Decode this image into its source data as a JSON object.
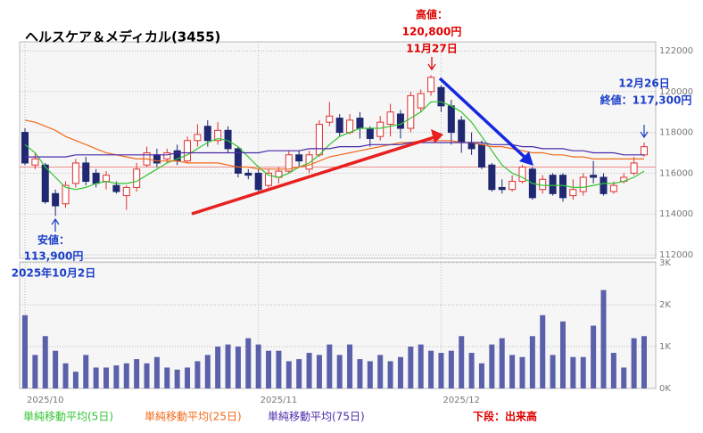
{
  "chart_data": {
    "type": "candlestick",
    "title": "ヘルスケア＆メディカル(3455)",
    "categories": [
      "2025/10",
      null,
      null,
      null,
      null,
      null,
      null,
      null,
      null,
      null,
      null,
      null,
      null,
      null,
      null,
      null,
      null,
      null,
      null,
      null,
      null,
      null,
      null,
      "2025/11",
      null,
      null,
      null,
      null,
      null,
      null,
      null,
      null,
      null,
      null,
      null,
      null,
      null,
      null,
      null,
      null,
      null,
      "2025/12",
      null,
      null,
      null,
      null,
      null,
      null,
      null,
      null,
      null,
      null,
      null,
      null,
      null,
      null,
      null,
      null,
      null,
      null,
      null,
      null
    ],
    "open": [
      118000,
      116400,
      116400,
      115000,
      114500,
      115500,
      116500,
      116000,
      115600,
      115400,
      114900,
      115300,
      116400,
      116900,
      116700,
      117100,
      116600,
      117600,
      118300,
      117600,
      118100,
      117200,
      116000,
      116000,
      115400,
      115800,
      116100,
      116900,
      116200,
      116900,
      118500,
      118700,
      118000,
      118700,
      118200,
      117800,
      118400,
      118900,
      118200,
      119200,
      120000,
      120200,
      119300,
      118600,
      117500,
      117400,
      116400,
      115300,
      115200,
      115600,
      116200,
      115200,
      115900,
      115900,
      114900,
      115100,
      115900,
      115800,
      115100,
      115600,
      116000,
      116900
    ],
    "high": [
      118200,
      117000,
      116500,
      115200,
      115600,
      116700,
      116800,
      116200,
      116100,
      115600,
      115400,
      116500,
      117300,
      117200,
      117200,
      117400,
      117800,
      118400,
      118600,
      118500,
      118300,
      117300,
      116200,
      116200,
      116200,
      116300,
      117100,
      117100,
      117100,
      118600,
      119500,
      118900,
      118900,
      119000,
      118300,
      118800,
      119400,
      119100,
      120000,
      120100,
      120800,
      120300,
      119600,
      118800,
      118000,
      117600,
      116500,
      115700,
      115900,
      116400,
      116300,
      115900,
      116000,
      116000,
      115700,
      116000,
      116600,
      116000,
      115600,
      116000,
      116800,
      117500
    ],
    "low": [
      116400,
      116200,
      114500,
      113900,
      114300,
      115300,
      115400,
      115300,
      115200,
      115000,
      114200,
      115100,
      116300,
      116300,
      116500,
      116400,
      116500,
      117300,
      117300,
      117400,
      117000,
      115800,
      115700,
      115000,
      115300,
      115500,
      116000,
      116300,
      116000,
      116800,
      118300,
      117800,
      117900,
      117700,
      117300,
      117600,
      117800,
      117700,
      118000,
      119000,
      119800,
      119000,
      117400,
      117000,
      116900,
      116200,
      115100,
      115000,
      115100,
      115500,
      114700,
      115000,
      114900,
      114600,
      114700,
      114900,
      115500,
      114900,
      115000,
      115500,
      115900,
      116800
    ],
    "close": [
      116500,
      116700,
      114600,
      114400,
      115400,
      116500,
      115600,
      115500,
      115900,
      115100,
      115300,
      116200,
      117000,
      116500,
      117000,
      116600,
      117600,
      117900,
      117600,
      118100,
      117200,
      116000,
      115900,
      115200,
      116000,
      116100,
      116900,
      116600,
      116900,
      118400,
      118800,
      118000,
      118600,
      118200,
      117700,
      118500,
      119000,
      118200,
      119800,
      119900,
      120700,
      119300,
      118000,
      117500,
      117200,
      116300,
      115200,
      115200,
      115600,
      116300,
      114800,
      115700,
      115000,
      114800,
      115200,
      115800,
      115800,
      115000,
      115400,
      115800,
      116500,
      117300
    ],
    "up_color": "#e03030",
    "down_color": "#1f2870",
    "hline": 116300,
    "hline_color": "#f09090",
    "ylim": [
      112000,
      122000
    ],
    "yticks": [
      112000,
      114000,
      116000,
      118000,
      120000,
      122000
    ],
    "grid": true,
    "series": [
      {
        "name": "単純移動平均(5日)",
        "color": "#33c433",
        "values": [
          117400,
          117000,
          116300,
          115800,
          115300,
          115200,
          115300,
          115500,
          115600,
          115500,
          115500,
          115600,
          115900,
          116200,
          116500,
          116700,
          116900,
          117200,
          117500,
          117700,
          117600,
          117300,
          116800,
          116300,
          115900,
          115800,
          116000,
          116300,
          116500,
          116900,
          117400,
          117800,
          118000,
          118200,
          118200,
          118200,
          118300,
          118400,
          118700,
          119000,
          119500,
          119500,
          119300,
          119000,
          118500,
          117800,
          117100,
          116400,
          116000,
          115800,
          115500,
          115400,
          115400,
          115400,
          115300,
          115300,
          115400,
          115500,
          115500,
          115600,
          115800,
          116100
        ]
      },
      {
        "name": "単純移動平均(25日)",
        "color": "#f26a1b",
        "values": [
          118600,
          118500,
          118300,
          118100,
          117800,
          117600,
          117400,
          117200,
          117000,
          116900,
          116800,
          116700,
          116700,
          116600,
          116600,
          116600,
          116500,
          116500,
          116500,
          116500,
          116400,
          116300,
          116300,
          116200,
          116200,
          116200,
          116200,
          116300,
          116400,
          116600,
          116800,
          116900,
          117000,
          117100,
          117200,
          117300,
          117400,
          117500,
          117500,
          117600,
          117600,
          117600,
          117600,
          117500,
          117500,
          117400,
          117300,
          117300,
          117200,
          117100,
          117000,
          117000,
          116900,
          116900,
          116800,
          116800,
          116700,
          116700,
          116700,
          116700,
          116700,
          116700
        ]
      },
      {
        "name": "単純移動平均(75日)",
        "color": "#4a2aa8",
        "values": [
          116800,
          116800,
          116800,
          116800,
          116800,
          116900,
          116900,
          116900,
          116900,
          116900,
          116900,
          116900,
          116900,
          116900,
          116900,
          117000,
          117000,
          117000,
          117000,
          117000,
          117000,
          117000,
          117000,
          117000,
          117100,
          117100,
          117100,
          117100,
          117200,
          117200,
          117200,
          117300,
          117300,
          117300,
          117400,
          117400,
          117400,
          117400,
          117500,
          117500,
          117500,
          117500,
          117500,
          117500,
          117500,
          117500,
          117400,
          117400,
          117400,
          117300,
          117300,
          117200,
          117200,
          117200,
          117100,
          117100,
          117000,
          117000,
          117000,
          116900,
          116900,
          116900
        ]
      }
    ],
    "volume": {
      "name": "下段：出来高",
      "name_color": "#e00000",
      "color": "#5b60aa",
      "values": [
        1750,
        800,
        1250,
        900,
        600,
        400,
        800,
        500,
        500,
        550,
        600,
        700,
        600,
        750,
        500,
        450,
        500,
        650,
        800,
        1000,
        1050,
        1000,
        1200,
        1050,
        900,
        900,
        650,
        700,
        850,
        800,
        1050,
        800,
        1050,
        700,
        650,
        800,
        650,
        750,
        1000,
        1050,
        900,
        850,
        900,
        1250,
        850,
        600,
        1050,
        1200,
        800,
        750,
        1250,
        1750,
        800,
        1600,
        750,
        750,
        1500,
        2350,
        850,
        500,
        1200,
        1250
      ],
      "ylim": [
        0,
        3000
      ],
      "yticks": [
        {
          "value": 0,
          "label": "0K"
        },
        {
          "value": 1000,
          "label": "1K"
        },
        {
          "value": 2000,
          "label": "2K"
        },
        {
          "value": 3000,
          "label": "3K"
        }
      ]
    },
    "annotations": [
      {
        "lines": [
          "高値：",
          "120,800円",
          "11月27日"
        ],
        "color": "#e00000"
      },
      {
        "lines": [
          "安値：",
          "113,900円",
          "2025年10月2日"
        ],
        "color": "#1a3ec8"
      },
      {
        "lines": [
          "12月26日",
          "終値：117,300円"
        ],
        "color": "#1a3ec8"
      }
    ]
  }
}
